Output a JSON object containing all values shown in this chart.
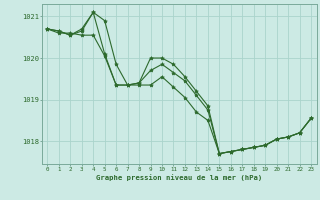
{
  "xlabel": "Graphe pression niveau de la mer (hPa)",
  "ylim": [
    1017.45,
    1021.3
  ],
  "xlim": [
    -0.5,
    23.5
  ],
  "yticks": [
    1018,
    1019,
    1020,
    1021
  ],
  "xtick_labels": [
    "0",
    "1",
    "2",
    "3",
    "4",
    "5",
    "6",
    "7",
    "8",
    "9",
    "10",
    "11",
    "12",
    "13",
    "14",
    "15",
    "16",
    "17",
    "18",
    "19",
    "20",
    "21",
    "22",
    "23"
  ],
  "xticks": [
    0,
    1,
    2,
    3,
    4,
    5,
    6,
    7,
    8,
    9,
    10,
    11,
    12,
    13,
    14,
    15,
    16,
    17,
    18,
    19,
    20,
    21,
    22,
    23
  ],
  "bg_color": "#cceae4",
  "line_color": "#2d6a2d",
  "grid_color": "#aad4cc",
  "lines": [
    [
      1020.7,
      1020.6,
      1020.6,
      1020.55,
      1020.55,
      1020.05,
      1019.35,
      1019.35,
      1019.4,
      1020.0,
      1020.0,
      1019.85,
      1019.55,
      1019.2,
      1018.85,
      1017.7,
      1017.75,
      1017.8,
      1017.85,
      1017.9,
      1018.05,
      1018.1,
      1018.2,
      1018.55
    ],
    [
      1020.7,
      1020.65,
      1020.55,
      1020.7,
      1021.1,
      1020.9,
      1019.85,
      1019.35,
      1019.35,
      1019.35,
      1019.55,
      1019.3,
      1019.05,
      1018.7,
      1018.5,
      1017.7,
      1017.75,
      1017.8,
      1017.85,
      1017.9,
      1018.05,
      1018.1,
      1018.2,
      1018.55
    ],
    [
      1020.7,
      1020.65,
      1020.55,
      1020.65,
      1021.1,
      1020.1,
      1019.35,
      1019.35,
      1019.4,
      1019.7,
      1019.85,
      1019.65,
      1019.45,
      1019.1,
      1018.75,
      1017.7,
      1017.75,
      1017.8,
      1017.85,
      1017.9,
      1018.05,
      1018.1,
      1018.2,
      1018.55
    ]
  ]
}
